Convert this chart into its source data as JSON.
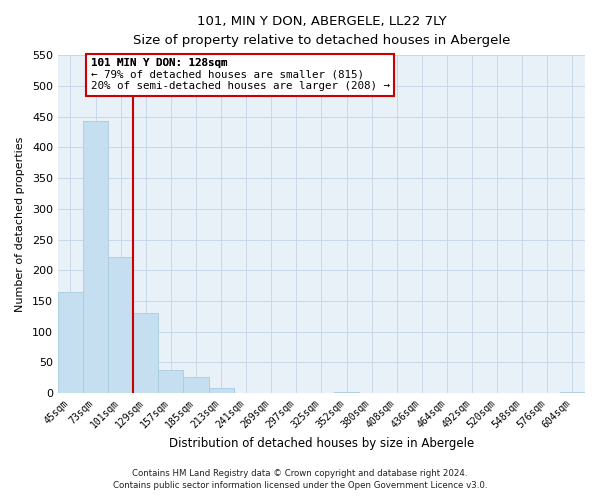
{
  "title": "101, MIN Y DON, ABERGELE, LL22 7LY",
  "subtitle": "Size of property relative to detached houses in Abergele",
  "xlabel": "Distribution of detached houses by size in Abergele",
  "ylabel": "Number of detached properties",
  "bar_labels": [
    "45sqm",
    "73sqm",
    "101sqm",
    "129sqm",
    "157sqm",
    "185sqm",
    "213sqm",
    "241sqm",
    "269sqm",
    "297sqm",
    "325sqm",
    "352sqm",
    "380sqm",
    "408sqm",
    "436sqm",
    "464sqm",
    "492sqm",
    "520sqm",
    "548sqm",
    "576sqm",
    "604sqm"
  ],
  "bar_values": [
    165,
    443,
    221,
    130,
    37,
    26,
    8,
    1,
    0,
    0,
    0,
    2,
    0,
    0,
    0,
    0,
    0,
    0,
    0,
    0,
    2
  ],
  "bar_color": "#c5dff0",
  "bar_edge_color": "#a8cce0",
  "highlight_line_color": "#cc0000",
  "ylim": [
    0,
    550
  ],
  "yticks": [
    0,
    50,
    100,
    150,
    200,
    250,
    300,
    350,
    400,
    450,
    500,
    550
  ],
  "annotation_title": "101 MIN Y DON: 128sqm",
  "annotation_line1": "← 79% of detached houses are smaller (815)",
  "annotation_line2": "20% of semi-detached houses are larger (208) →",
  "annotation_box_color": "#ffffff",
  "annotation_box_edge": "#cc0000",
  "grid_color": "#c8d8e8",
  "footer_line1": "Contains HM Land Registry data © Crown copyright and database right 2024.",
  "footer_line2": "Contains public sector information licensed under the Open Government Licence v3.0.",
  "background_color": "#ffffff",
  "plot_bg_color": "#e8f0f8"
}
